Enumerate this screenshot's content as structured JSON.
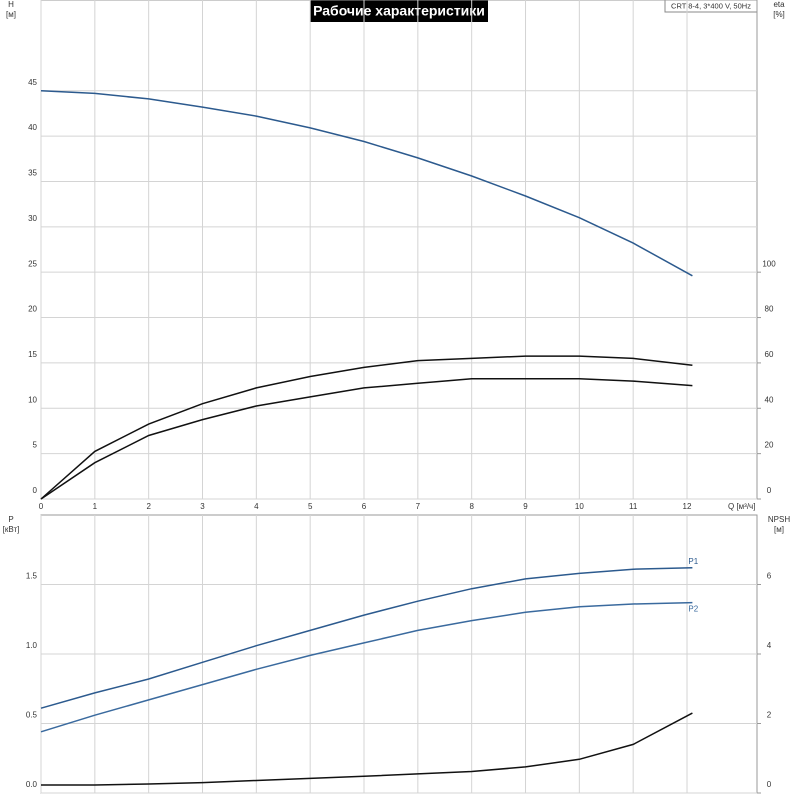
{
  "chart_data": [
    {
      "type": "line",
      "title": "Рабочие характеристики",
      "annotation": "CRT 8-4, 3*400 V, 50Hz",
      "x_label": "Q [м³/ч]",
      "y_label": "H",
      "y_unit": "[м]",
      "y2_label": "eta",
      "y2_unit": "[%]",
      "x": [
        0,
        1,
        2,
        3,
        4,
        5,
        6,
        7,
        8,
        9,
        10,
        11,
        12.1
      ],
      "xlim": [
        0,
        13.3
      ],
      "xticks": [
        0,
        1,
        2,
        3,
        4,
        5,
        6,
        7,
        8,
        9,
        10,
        11,
        12
      ],
      "ylim": [
        0,
        55
      ],
      "yticks": [
        0,
        5,
        10,
        15,
        20,
        25,
        30,
        35,
        40,
        45
      ],
      "y2lim": [
        0,
        220
      ],
      "y2ticks": [
        0,
        20,
        40,
        60,
        80,
        100
      ],
      "grid": true,
      "series": [
        {
          "color": "#2c5a8e",
          "values": [
            45,
            44.7,
            44.1,
            43.2,
            42.2,
            40.9,
            39.4,
            37.6,
            35.6,
            33.4,
            31,
            28.2,
            24.6
          ]
        },
        {
          "color": "#111111",
          "axis": "y2",
          "values": [
            0,
            21,
            33,
            42,
            49,
            54,
            58,
            61,
            62,
            63,
            63,
            62,
            59
          ]
        },
        {
          "color": "#111111",
          "axis": "y2",
          "values": [
            0,
            16,
            28,
            35,
            41,
            45,
            49,
            51,
            53,
            53,
            53,
            52,
            50
          ]
        }
      ]
    },
    {
      "type": "line",
      "y_label": "P",
      "y_unit": "[кВт]",
      "y2_label": "NPSH",
      "y2_unit": "[м]",
      "x": [
        0,
        1,
        2,
        3,
        4,
        5,
        6,
        7,
        8,
        9,
        10,
        11,
        12.1
      ],
      "xlim": [
        0,
        13.3
      ],
      "xticks": [
        0,
        1,
        2,
        3,
        4,
        5,
        6,
        7,
        8,
        9,
        10,
        11,
        12
      ],
      "ylim": [
        0,
        2.0
      ],
      "yticks": [
        {
          "value": 0,
          "label": "0.0"
        },
        {
          "value": 0.5,
          "label": "0.5"
        },
        {
          "value": 1,
          "label": "1.0"
        },
        {
          "value": 1.5,
          "label": "1.5"
        }
      ],
      "y2lim": [
        0,
        8
      ],
      "y2ticks": [
        0,
        2,
        4,
        6
      ],
      "grid": true,
      "series": [
        {
          "name": "P1",
          "color": "#2c5a8e",
          "values": [
            0.61,
            0.72,
            0.82,
            0.94,
            1.06,
            1.17,
            1.28,
            1.38,
            1.47,
            1.54,
            1.58,
            1.61,
            1.62
          ]
        },
        {
          "name": "P2",
          "color": "#3a6a9e",
          "values": [
            0.44,
            0.56,
            0.67,
            0.78,
            0.89,
            0.99,
            1.08,
            1.17,
            1.24,
            1.3,
            1.34,
            1.36,
            1.37
          ]
        },
        {
          "color": "#111111",
          "axis": "y2",
          "values": [
            0.23,
            0.23,
            0.26,
            0.3,
            0.36,
            0.42,
            0.48,
            0.55,
            0.62,
            0.75,
            0.97,
            1.4,
            2.3
          ]
        }
      ]
    }
  ]
}
